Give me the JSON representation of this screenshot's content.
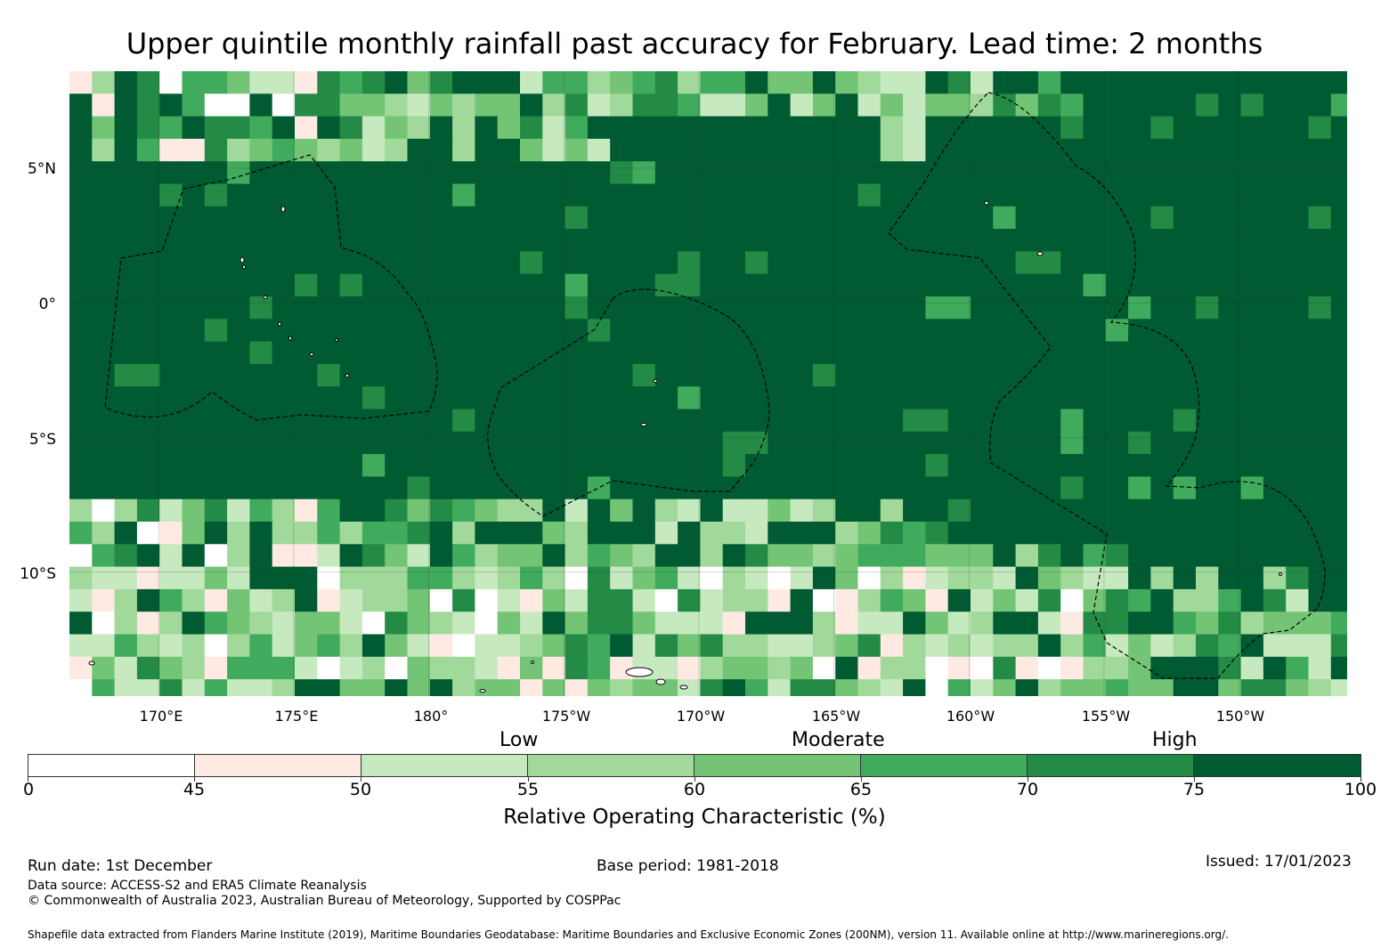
{
  "title": "Upper quintile monthly rainfall past accuracy for February. Lead time: 2 months",
  "map": {
    "lat_labels": [
      "5°N",
      "0°",
      "5°S",
      "10°S"
    ],
    "lon_labels": [
      "170°E",
      "175°E",
      "180°",
      "175°W",
      "170°W",
      "165°W",
      "160°W",
      "155°W",
      "150°W"
    ],
    "extent": {
      "lon_west": 166.7,
      "lon_east": 214.0,
      "lat_north": 8.6,
      "lat_south": -14.6
    },
    "grid_cell_deg": 0.83,
    "layers": [
      "ROC accuracy grid",
      "coastlines",
      "EEZ boundaries (dashed)",
      "graticule"
    ]
  },
  "legend": {
    "categories": [
      "Low",
      "Moderate",
      "High"
    ],
    "ticks": [
      "0",
      "45",
      "50",
      "55",
      "60",
      "65",
      "70",
      "75",
      "100"
    ],
    "bins": [
      {
        "from": 0,
        "to": 45,
        "color": "#ffffff"
      },
      {
        "from": 45,
        "to": 50,
        "color": "#feeae3"
      },
      {
        "from": 50,
        "to": 55,
        "color": "#c7e9c0"
      },
      {
        "from": 55,
        "to": 60,
        "color": "#a1d99b"
      },
      {
        "from": 60,
        "to": 65,
        "color": "#74c476"
      },
      {
        "from": 65,
        "to": 70,
        "color": "#41ab5d"
      },
      {
        "from": 70,
        "to": 75,
        "color": "#238b45"
      },
      {
        "from": 75,
        "to": 100,
        "color": "#005a32"
      }
    ],
    "label": "Relative Operating Characteristic (%)"
  },
  "footer": {
    "run_date": "Run date: 1st December",
    "base_period": "Base period: 1981-2018",
    "issued": "Issued: 17/01/2023",
    "data_source": "Data source: ACCESS-S2 and ERA5 Climate Reanalysis",
    "copyright": "© Commonwealth of Australia 2023, Australian Bureau of Meteorology, Supported by COSPPac",
    "shapefile": "Shapefile data extracted from Flanders Marine Institute (2019), Maritime Boundaries Geodatabase: Maritime Boundaries and Exclusive Economic Zones (200NM), version 11. Available online at http://www.marineregions.org/."
  }
}
